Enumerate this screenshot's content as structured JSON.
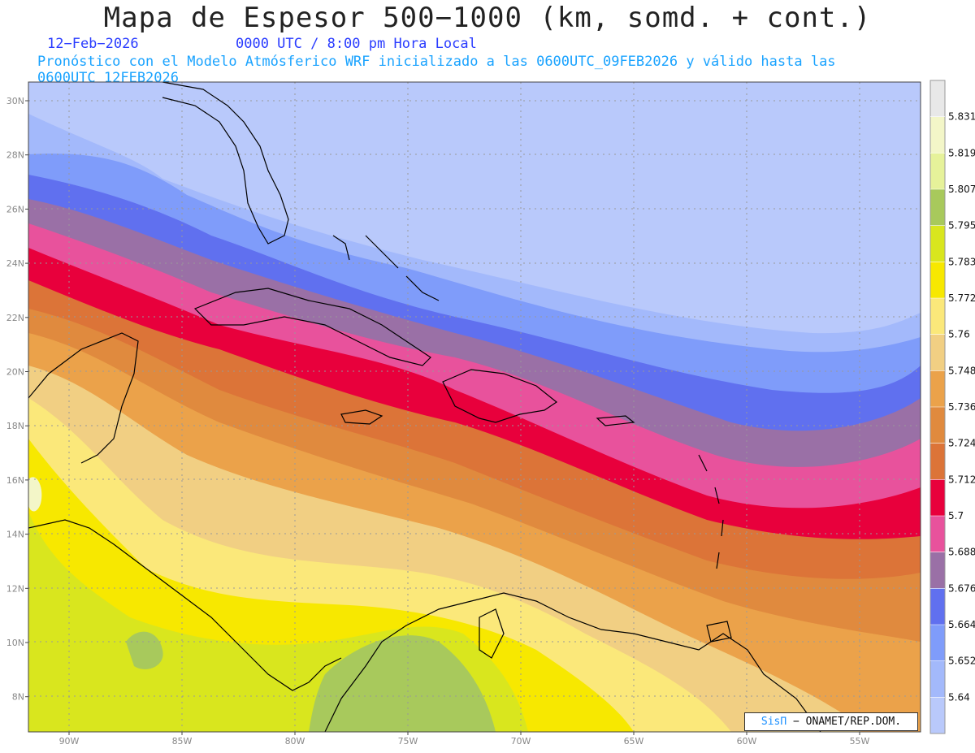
{
  "title": "Mapa de Espesor 500−1000 (km, somd. + cont.)",
  "date": "12−Feb−2026",
  "time": "0000 UTC / 8:00 pm Hora Local",
  "forecast": "Pronóstico con el Modelo Atmósferico WRF inicializado a las 0600UTC_09FEB2026 y válido hasta las  0600UTC_12FEB2026",
  "credit": {
    "logo": "SisΠ",
    "text": "− ONAMET/REP.DOM."
  },
  "lat_labels": [
    "30N",
    "28N",
    "26N",
    "24N",
    "22N",
    "20N",
    "18N",
    "16N",
    "14N",
    "12N",
    "10N",
    "8N"
  ],
  "lon_labels": [
    "90W",
    "85W",
    "80W",
    "75W",
    "70W",
    "65W",
    "60W",
    "55W"
  ],
  "colorbar": {
    "labels": [
      "5.831",
      "5.819",
      "5.807",
      "5.795",
      "5.783",
      "5.772",
      "5.76",
      "5.748",
      "5.736",
      "5.724",
      "5.712",
      "5.7",
      "5.688",
      "5.676",
      "5.664",
      "5.652",
      "5.64"
    ],
    "colors": [
      "#e8e8e8",
      "#f3f6c8",
      "#e6f29a",
      "#a8c95c",
      "#d9e61e",
      "#f7e800",
      "#fbe87a",
      "#f1cf83",
      "#eba24a",
      "#e08a3e",
      "#dc7438",
      "#e8003c",
      "#e8529c",
      "#9a70a6",
      "#6070ef",
      "#7f9cfa",
      "#a3b9fb",
      "#b9c9fb"
    ]
  },
  "bands": {
    "colors": [
      "#b9c9fb",
      "#a3b9fb",
      "#7f9cfa",
      "#6070ef",
      "#9a70a6",
      "#e8529c",
      "#e8003c",
      "#dc7438",
      "#e08a3e",
      "#eba24a",
      "#f1cf83",
      "#fbe87a",
      "#f7e800",
      "#d9e61e",
      "#a8c95c"
    ]
  }
}
